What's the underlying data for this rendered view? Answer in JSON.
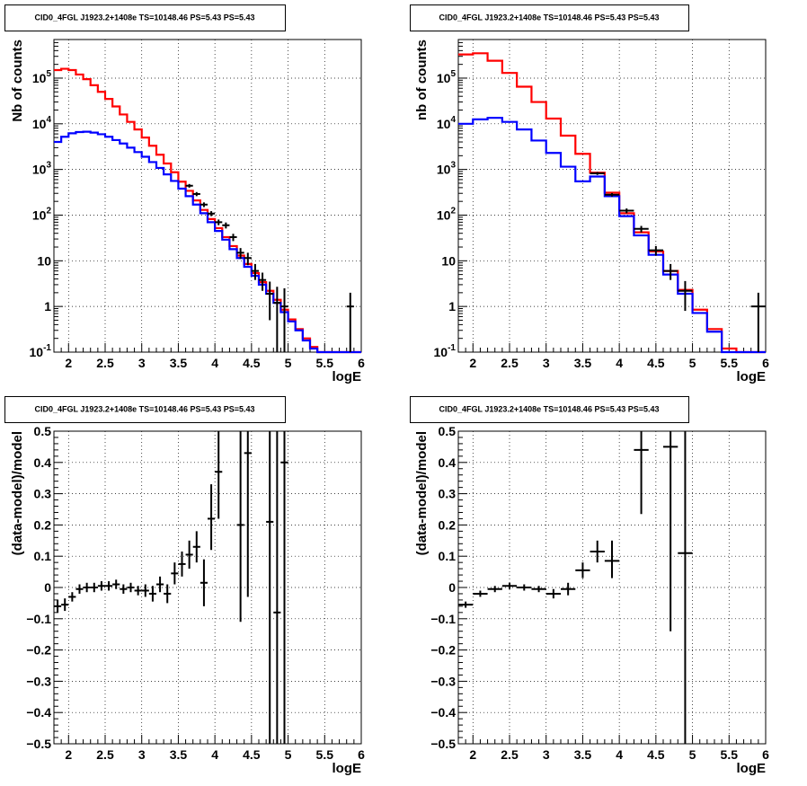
{
  "chart_data": [
    {
      "type": "line",
      "title": "CID0_4FGL J1923.2+1408e TS=10148.46 PS=5.43 PS=5.43",
      "xlabel": "logE",
      "ylabel": "Nb of counts",
      "xlim": [
        1.8,
        6.0
      ],
      "ylim": [
        0.1,
        700000
      ],
      "yscale": "log",
      "grid": true,
      "x_ticks": [
        "2",
        "2.5",
        "3",
        "3.5",
        "4",
        "4.5",
        "5",
        "5.5",
        "6"
      ],
      "y_ticks": [
        "10^-1",
        "1",
        "10",
        "10^2",
        "10^3",
        "10^4",
        "10^5"
      ],
      "bin_edges": [
        1.8,
        1.9,
        2.0,
        2.1,
        2.2,
        2.3,
        2.4,
        2.5,
        2.6,
        2.7,
        2.8,
        2.9,
        3.0,
        3.1,
        3.2,
        3.3,
        3.4,
        3.5,
        3.6,
        3.7,
        3.8,
        3.9,
        4.0,
        4.1,
        4.2,
        4.3,
        4.4,
        4.5,
        4.6,
        4.7,
        4.8,
        4.9,
        5.0,
        5.1,
        5.2,
        5.3,
        5.4,
        5.5,
        5.6,
        5.7,
        5.8,
        5.9,
        6.0
      ],
      "series": [
        {
          "color": "#ff0000",
          "values": [
            150000,
            160000,
            150000,
            120000,
            95000,
            70000,
            50000,
            35000,
            24000,
            16000,
            11000,
            7500,
            5000,
            3300,
            2100,
            1350,
            870,
            540,
            340,
            210,
            130,
            82,
            52,
            33,
            21,
            13,
            8.5,
            5.4,
            3.4,
            2.2,
            1.4,
            0.85,
            0.52,
            0.32,
            0.2,
            0.13,
            0.1,
            0.1,
            0.1,
            0.1,
            0.1,
            0.1
          ]
        },
        {
          "color": "#0000ff",
          "values": [
            4000,
            5200,
            6200,
            6600,
            6700,
            6400,
            5900,
            5200,
            4400,
            3700,
            3000,
            2400,
            1900,
            1450,
            1080,
            780,
            560,
            380,
            260,
            170,
            110,
            70,
            45,
            29,
            18,
            11.5,
            7.4,
            4.7,
            3,
            1.9,
            1.2,
            0.75,
            0.47,
            0.3,
            0.18,
            0.12,
            0.1,
            0.1,
            0.1,
            0.1,
            0.1,
            0.1
          ]
        }
      ],
      "points": [
        {
          "x": 3.65,
          "y": 440,
          "xerr": 0.05,
          "ylo": 400,
          "yhi": 480
        },
        {
          "x": 3.75,
          "y": 290,
          "xerr": 0.05,
          "ylo": 260,
          "yhi": 320
        },
        {
          "x": 3.85,
          "y": 170,
          "xerr": 0.05,
          "ylo": 150,
          "yhi": 190
        },
        {
          "x": 3.95,
          "y": 108,
          "xerr": 0.05,
          "ylo": 95,
          "yhi": 122
        },
        {
          "x": 4.05,
          "y": 70,
          "xerr": 0.05,
          "ylo": 60,
          "yhi": 80
        },
        {
          "x": 4.15,
          "y": 60,
          "xerr": 0.05,
          "ylo": 51,
          "yhi": 69
        },
        {
          "x": 4.25,
          "y": 33,
          "xerr": 0.05,
          "ylo": 27,
          "yhi": 39
        },
        {
          "x": 4.35,
          "y": 15,
          "xerr": 0.05,
          "ylo": 11,
          "yhi": 19
        },
        {
          "x": 4.45,
          "y": 11.5,
          "xerr": 0.05,
          "ylo": 8,
          "yhi": 15
        },
        {
          "x": 4.55,
          "y": 6,
          "xerr": 0.05,
          "ylo": 3.8,
          "yhi": 8.5
        },
        {
          "x": 4.65,
          "y": 3.8,
          "xerr": 0.05,
          "ylo": 2.2,
          "yhi": 5.5
        },
        {
          "x": 4.75,
          "y": 1.9,
          "xerr": 0.05,
          "ylo": 0.5,
          "yhi": 3.5
        },
        {
          "x": 4.85,
          "y": 1.2,
          "xerr": 0.05,
          "ylo": 0.1,
          "yhi": 2.7
        },
        {
          "x": 4.95,
          "y": 1.0,
          "xerr": 0.05,
          "ylo": 0.1,
          "yhi": 2.5
        },
        {
          "x": 5.85,
          "y": 1.0,
          "xerr": 0.05,
          "ylo": 0.1,
          "yhi": 2.0
        }
      ]
    },
    {
      "type": "line",
      "title": "CID0_4FGL J1923.2+1408e TS=10148.46 PS=5.43 PS=5.43",
      "xlabel": "logE",
      "ylabel": "nb of counts",
      "xlim": [
        1.8,
        6.0
      ],
      "ylim": [
        0.1,
        700000
      ],
      "yscale": "log",
      "grid": true,
      "x_ticks": [
        "2",
        "2.5",
        "3",
        "3.5",
        "4",
        "4.5",
        "5",
        "5.5",
        "6"
      ],
      "y_ticks": [
        "10^-1",
        "1",
        "10",
        "10^2",
        "10^3",
        "10^4",
        "10^5"
      ],
      "bin_edges": [
        1.8,
        2.0,
        2.2,
        2.4,
        2.6,
        2.8,
        3.0,
        3.2,
        3.4,
        3.6,
        3.8,
        4.0,
        4.2,
        4.4,
        4.6,
        4.8,
        5.0,
        5.2,
        5.4,
        5.6,
        5.8,
        6.0
      ],
      "series": [
        {
          "color": "#ff0000",
          "values": [
            330000,
            350000,
            240000,
            130000,
            65000,
            30000,
            13000,
            5500,
            2200,
            850,
            310,
            110,
            42,
            16,
            6,
            2.3,
            0.85,
            0.32,
            0.12,
            0.1,
            0.1
          ]
        },
        {
          "color": "#0000ff",
          "values": [
            10000,
            12500,
            13500,
            11000,
            7500,
            4300,
            2300,
            1150,
            550,
            700,
            260,
            95,
            36,
            13.5,
            5,
            1.9,
            0.72,
            0.28,
            0.1,
            0.1,
            0.1
          ]
        }
      ],
      "points": [
        {
          "x": 3.7,
          "y": 820,
          "xerr": 0.1,
          "ylo": 760,
          "yhi": 880
        },
        {
          "x": 3.9,
          "y": 280,
          "xerr": 0.1,
          "ylo": 255,
          "yhi": 305
        },
        {
          "x": 4.1,
          "y": 125,
          "xerr": 0.1,
          "ylo": 110,
          "yhi": 140
        },
        {
          "x": 4.3,
          "y": 50,
          "xerr": 0.1,
          "ylo": 42,
          "yhi": 58
        },
        {
          "x": 4.5,
          "y": 17,
          "xerr": 0.1,
          "ylo": 13,
          "yhi": 21
        },
        {
          "x": 4.7,
          "y": 6,
          "xerr": 0.1,
          "ylo": 3.8,
          "yhi": 8.5
        },
        {
          "x": 4.9,
          "y": 2.2,
          "xerr": 0.1,
          "ylo": 0.8,
          "yhi": 3.6
        },
        {
          "x": 5.9,
          "y": 1.0,
          "xerr": 0.1,
          "ylo": 0.1,
          "yhi": 2.0
        }
      ]
    },
    {
      "type": "scatter",
      "title": "CID0_4FGL J1923.2+1408e TS=10148.46 PS=5.43 PS=5.43",
      "xlabel": "logE",
      "ylabel": "(data-model)/model",
      "xlim": [
        1.8,
        6.0
      ],
      "ylim": [
        -0.5,
        0.5
      ],
      "yscale": "linear",
      "grid": true,
      "x_ticks": [
        "2",
        "2.5",
        "3",
        "3.5",
        "4",
        "4.5",
        "5",
        "5.5",
        "6"
      ],
      "y_ticks": [
        "-0.5",
        "-0.4",
        "-0.3",
        "-0.2",
        "-0.1",
        "0",
        "0.1",
        "0.2",
        "0.3",
        "0.4",
        "0.5"
      ],
      "points": [
        {
          "x": 1.85,
          "y": -0.06,
          "xerr": 0.05,
          "ylo": -0.08,
          "yhi": -0.04
        },
        {
          "x": 1.95,
          "y": -0.055,
          "xerr": 0.05,
          "ylo": -0.075,
          "yhi": -0.035
        },
        {
          "x": 2.05,
          "y": -0.03,
          "xerr": 0.05,
          "ylo": -0.045,
          "yhi": -0.015
        },
        {
          "x": 2.15,
          "y": -0.005,
          "xerr": 0.05,
          "ylo": -0.02,
          "yhi": 0.01
        },
        {
          "x": 2.25,
          "y": 0.0,
          "xerr": 0.05,
          "ylo": -0.015,
          "yhi": 0.015
        },
        {
          "x": 2.35,
          "y": 0.0,
          "xerr": 0.05,
          "ylo": -0.015,
          "yhi": 0.015
        },
        {
          "x": 2.45,
          "y": 0.005,
          "xerr": 0.05,
          "ylo": -0.01,
          "yhi": 0.02
        },
        {
          "x": 2.55,
          "y": 0.005,
          "xerr": 0.05,
          "ylo": -0.01,
          "yhi": 0.02
        },
        {
          "x": 2.65,
          "y": 0.01,
          "xerr": 0.05,
          "ylo": -0.005,
          "yhi": 0.025
        },
        {
          "x": 2.75,
          "y": -0.005,
          "xerr": 0.05,
          "ylo": -0.02,
          "yhi": 0.01
        },
        {
          "x": 2.85,
          "y": 0.0,
          "xerr": 0.05,
          "ylo": -0.015,
          "yhi": 0.015
        },
        {
          "x": 2.95,
          "y": -0.01,
          "xerr": 0.05,
          "ylo": -0.025,
          "yhi": 0.005
        },
        {
          "x": 3.05,
          "y": -0.01,
          "xerr": 0.05,
          "ylo": -0.03,
          "yhi": 0.01
        },
        {
          "x": 3.15,
          "y": -0.02,
          "xerr": 0.05,
          "ylo": -0.045,
          "yhi": 0.005
        },
        {
          "x": 3.25,
          "y": 0.01,
          "xerr": 0.05,
          "ylo": -0.015,
          "yhi": 0.035
        },
        {
          "x": 3.35,
          "y": -0.02,
          "xerr": 0.05,
          "ylo": -0.05,
          "yhi": 0.01
        },
        {
          "x": 3.45,
          "y": 0.045,
          "xerr": 0.05,
          "ylo": 0.01,
          "yhi": 0.08
        },
        {
          "x": 3.55,
          "y": 0.075,
          "xerr": 0.05,
          "ylo": 0.035,
          "yhi": 0.115
        },
        {
          "x": 3.65,
          "y": 0.105,
          "xerr": 0.05,
          "ylo": 0.06,
          "yhi": 0.15
        },
        {
          "x": 3.75,
          "y": 0.13,
          "xerr": 0.05,
          "ylo": 0.08,
          "yhi": 0.18
        },
        {
          "x": 3.85,
          "y": 0.015,
          "xerr": 0.05,
          "ylo": -0.06,
          "yhi": 0.09
        },
        {
          "x": 3.95,
          "y": 0.22,
          "xerr": 0.05,
          "ylo": 0.12,
          "yhi": 0.33
        },
        {
          "x": 4.05,
          "y": 0.37,
          "xerr": 0.05,
          "ylo": 0.22,
          "yhi": 0.5
        },
        {
          "x": 4.35,
          "y": 0.2,
          "xerr": 0.05,
          "ylo": -0.11,
          "yhi": 0.5
        },
        {
          "x": 4.45,
          "y": 0.43,
          "xerr": 0.05,
          "ylo": -0.03,
          "yhi": 0.5
        },
        {
          "x": 4.75,
          "y": 0.21,
          "xerr": 0.05,
          "ylo": -0.5,
          "yhi": 0.5
        },
        {
          "x": 4.85,
          "y": -0.08,
          "xerr": 0.05,
          "ylo": -0.5,
          "yhi": 0.5
        },
        {
          "x": 4.95,
          "y": 0.4,
          "xerr": 0.05,
          "ylo": -0.5,
          "yhi": 0.5
        }
      ]
    },
    {
      "type": "scatter",
      "title": "CID0_4FGL J1923.2+1408e TS=10148.46 PS=5.43 PS=5.43",
      "xlabel": "logE",
      "ylabel": "(data-model)/model",
      "xlim": [
        1.8,
        6.0
      ],
      "ylim": [
        -0.5,
        0.5
      ],
      "yscale": "linear",
      "grid": true,
      "x_ticks": [
        "2",
        "2.5",
        "3",
        "3.5",
        "4",
        "4.5",
        "5",
        "5.5",
        "6"
      ],
      "y_ticks": [
        "-0.5",
        "-0.4",
        "-0.3",
        "-0.2",
        "-0.1",
        "0",
        "0.1",
        "0.2",
        "0.3",
        "0.4",
        "0.5"
      ],
      "points": [
        {
          "x": 1.9,
          "y": -0.055,
          "xerr": 0.1,
          "ylo": -0.065,
          "yhi": -0.045
        },
        {
          "x": 2.1,
          "y": -0.02,
          "xerr": 0.1,
          "ylo": -0.03,
          "yhi": -0.01
        },
        {
          "x": 2.3,
          "y": -0.005,
          "xerr": 0.1,
          "ylo": -0.015,
          "yhi": 0.005
        },
        {
          "x": 2.5,
          "y": 0.005,
          "xerr": 0.1,
          "ylo": -0.005,
          "yhi": 0.015
        },
        {
          "x": 2.7,
          "y": 0.0,
          "xerr": 0.1,
          "ylo": -0.01,
          "yhi": 0.01
        },
        {
          "x": 2.9,
          "y": -0.005,
          "xerr": 0.1,
          "ylo": -0.015,
          "yhi": 0.005
        },
        {
          "x": 3.1,
          "y": -0.02,
          "xerr": 0.1,
          "ylo": -0.035,
          "yhi": -0.005
        },
        {
          "x": 3.3,
          "y": -0.005,
          "xerr": 0.1,
          "ylo": -0.025,
          "yhi": 0.015
        },
        {
          "x": 3.5,
          "y": 0.055,
          "xerr": 0.1,
          "ylo": 0.03,
          "yhi": 0.08
        },
        {
          "x": 3.7,
          "y": 0.115,
          "xerr": 0.1,
          "ylo": 0.08,
          "yhi": 0.15
        },
        {
          "x": 3.9,
          "y": 0.085,
          "xerr": 0.1,
          "ylo": 0.03,
          "yhi": 0.15
        },
        {
          "x": 4.3,
          "y": 0.44,
          "xerr": 0.1,
          "ylo": 0.235,
          "yhi": 0.5
        },
        {
          "x": 4.7,
          "y": 0.45,
          "xerr": 0.1,
          "ylo": -0.14,
          "yhi": 0.5
        },
        {
          "x": 4.9,
          "y": 0.11,
          "xerr": 0.1,
          "ylo": -0.5,
          "yhi": 0.5
        }
      ]
    }
  ]
}
